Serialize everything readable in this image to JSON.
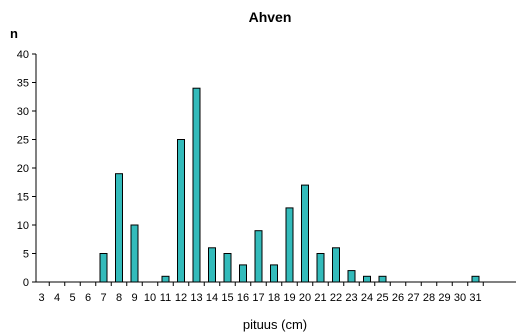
{
  "chart_data": {
    "type": "bar",
    "title": "Ahven",
    "ylabel": "n",
    "xlabel": "pituus (cm)",
    "categories": [
      "3",
      "4",
      "5",
      "6",
      "7",
      "8",
      "9",
      "10",
      "11",
      "12",
      "13",
      "14",
      "15",
      "16",
      "17",
      "18",
      "19",
      "20",
      "21",
      "22",
      "23",
      "24",
      "25",
      "26",
      "27",
      "28",
      "29",
      "30",
      "31"
    ],
    "values": [
      0,
      0,
      0,
      0,
      5,
      19,
      10,
      0,
      1,
      25,
      34,
      6,
      5,
      3,
      9,
      3,
      13,
      17,
      5,
      6,
      2,
      1,
      1,
      0,
      0,
      0,
      0,
      0,
      1
    ],
    "ylim": [
      0,
      40
    ],
    "yticks": [
      0,
      5,
      10,
      15,
      20,
      25,
      30,
      35,
      40
    ],
    "grid": false,
    "bar_color": "#33bbbb"
  }
}
